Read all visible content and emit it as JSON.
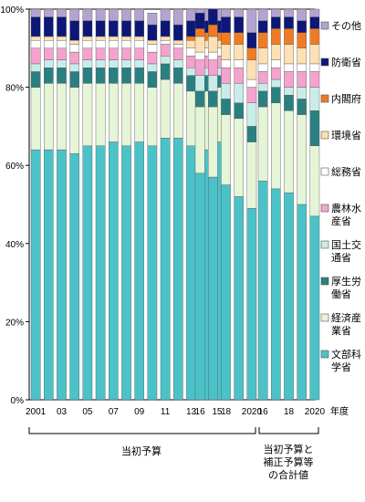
{
  "chart_data": {
    "type": "bar",
    "stacked": true,
    "ylim": [
      0,
      100
    ],
    "yticks": [
      "0%",
      "20%",
      "40%",
      "60%",
      "80%",
      "100%"
    ],
    "xlabel": "年度",
    "groups": [
      {
        "label": "当初予算",
        "categories": [
          "2001",
          "2002",
          "2003",
          "2004",
          "2005",
          "2006",
          "2007",
          "2008",
          "2009",
          "2010",
          "2011",
          "2012",
          "2013",
          "2014",
          "2015"
        ],
        "tick_labels": [
          "2001",
          "",
          "03",
          "",
          "05",
          "",
          "07",
          "",
          "09",
          "",
          "11",
          "",
          "13",
          "",
          "15"
        ]
      },
      {
        "label": "",
        "categories": [
          "2016",
          "2017",
          "2018",
          "2019",
          "2020"
        ],
        "tick_labels": [
          "16",
          "",
          "18",
          "",
          "2020"
        ]
      },
      {
        "label": "当初予算と補正予算等の合計値",
        "label_lines": [
          "当初予算と",
          "補正予算等",
          "の合計値"
        ],
        "categories": [
          "2016",
          "2017",
          "2018",
          "2019",
          "2020"
        ],
        "tick_labels": [
          "16",
          "",
          "18",
          "",
          "2020"
        ]
      }
    ],
    "series": [
      {
        "name": "文部科学省",
        "legend_lines": [
          "文部科",
          "学省"
        ],
        "color": "#4bc2c8",
        "values": [
          64,
          64,
          64,
          63,
          65,
          65,
          66,
          65,
          66,
          65,
          67,
          67,
          65,
          64,
          66,
          58,
          57,
          55,
          52,
          49,
          56,
          54,
          53,
          50,
          47
        ]
      },
      {
        "name": "経済産業省",
        "legend_lines": [
          "経済産",
          "業省"
        ],
        "color": "#e6f4d7",
        "values": [
          16,
          17,
          17,
          17,
          16,
          16,
          15,
          16,
          15,
          15,
          15,
          14,
          14,
          15,
          14,
          17,
          18,
          18,
          20,
          17,
          19,
          22,
          21,
          23,
          18
        ]
      },
      {
        "name": "厚生労働省",
        "legend_lines": [
          "厚生労",
          "働省"
        ],
        "color": "#2a8080",
        "values": [
          4,
          4,
          4,
          4,
          4,
          4,
          4,
          4,
          4,
          4,
          4,
          4,
          4,
          4,
          3,
          4,
          4,
          4,
          4,
          4,
          4,
          4,
          4,
          4,
          9
        ]
      },
      {
        "name": "国土交通省",
        "legend_lines": [
          "国土交",
          "通省"
        ],
        "color": "#c9ece9",
        "values": [
          2,
          2,
          2,
          2,
          2,
          2,
          2,
          2,
          2,
          2,
          2,
          2,
          2,
          2,
          2,
          4,
          4,
          4,
          5,
          6,
          2,
          2,
          2,
          3,
          6
        ]
      },
      {
        "name": "農林水産省",
        "legend_lines": [
          "農林水",
          "産省"
        ],
        "color": "#f5a2cf",
        "values": [
          4,
          3,
          3,
          3,
          3,
          3,
          3,
          3,
          3,
          3,
          3,
          3,
          3,
          3,
          3,
          4,
          4,
          4,
          4,
          4,
          3,
          3,
          4,
          4,
          4
        ]
      },
      {
        "name": "総務省",
        "legend_lines": [
          "総務省"
        ],
        "color": "#ffffff",
        "values": [
          2,
          2,
          2,
          2,
          2,
          2,
          2,
          2,
          2,
          2,
          1,
          1,
          2,
          2,
          2,
          2,
          2,
          2,
          2,
          2,
          2,
          2,
          2,
          2,
          2
        ]
      },
      {
        "name": "環境省",
        "legend_lines": [
          "環境省"
        ],
        "color": "#fde0b4",
        "values": [
          1,
          1,
          1,
          1,
          1,
          1,
          1,
          1,
          1,
          1,
          1,
          1,
          2,
          2,
          2,
          4,
          4,
          4,
          4,
          5,
          4,
          4,
          5,
          4,
          5
        ]
      },
      {
        "name": "内閣府",
        "legend_lines": [
          "内閣府"
        ],
        "color": "#ef7b25",
        "values": [
          0,
          0,
          0,
          0,
          0,
          0,
          0,
          0,
          0,
          0,
          0,
          0,
          1,
          2,
          2,
          2,
          3,
          3,
          3,
          3,
          4,
          4,
          4,
          4,
          4
        ]
      },
      {
        "name": "防衛省",
        "legend_lines": [
          "防衛省"
        ],
        "color": "#0d1777",
        "values": [
          5,
          5,
          5,
          5,
          4,
          4,
          4,
          4,
          4,
          4,
          4,
          4,
          4,
          3,
          3,
          4,
          4,
          4,
          4,
          4,
          3,
          3,
          3,
          3,
          3
        ]
      },
      {
        "name": "その他",
        "legend_lines": [
          "その他"
        ],
        "color": "#b3a4cf",
        "values": [
          2,
          2,
          2,
          3,
          3,
          3,
          3,
          3,
          3,
          3,
          3,
          4,
          3,
          3,
          3,
          1,
          0,
          2,
          2,
          6,
          3,
          2,
          2,
          3,
          2
        ]
      }
    ]
  }
}
